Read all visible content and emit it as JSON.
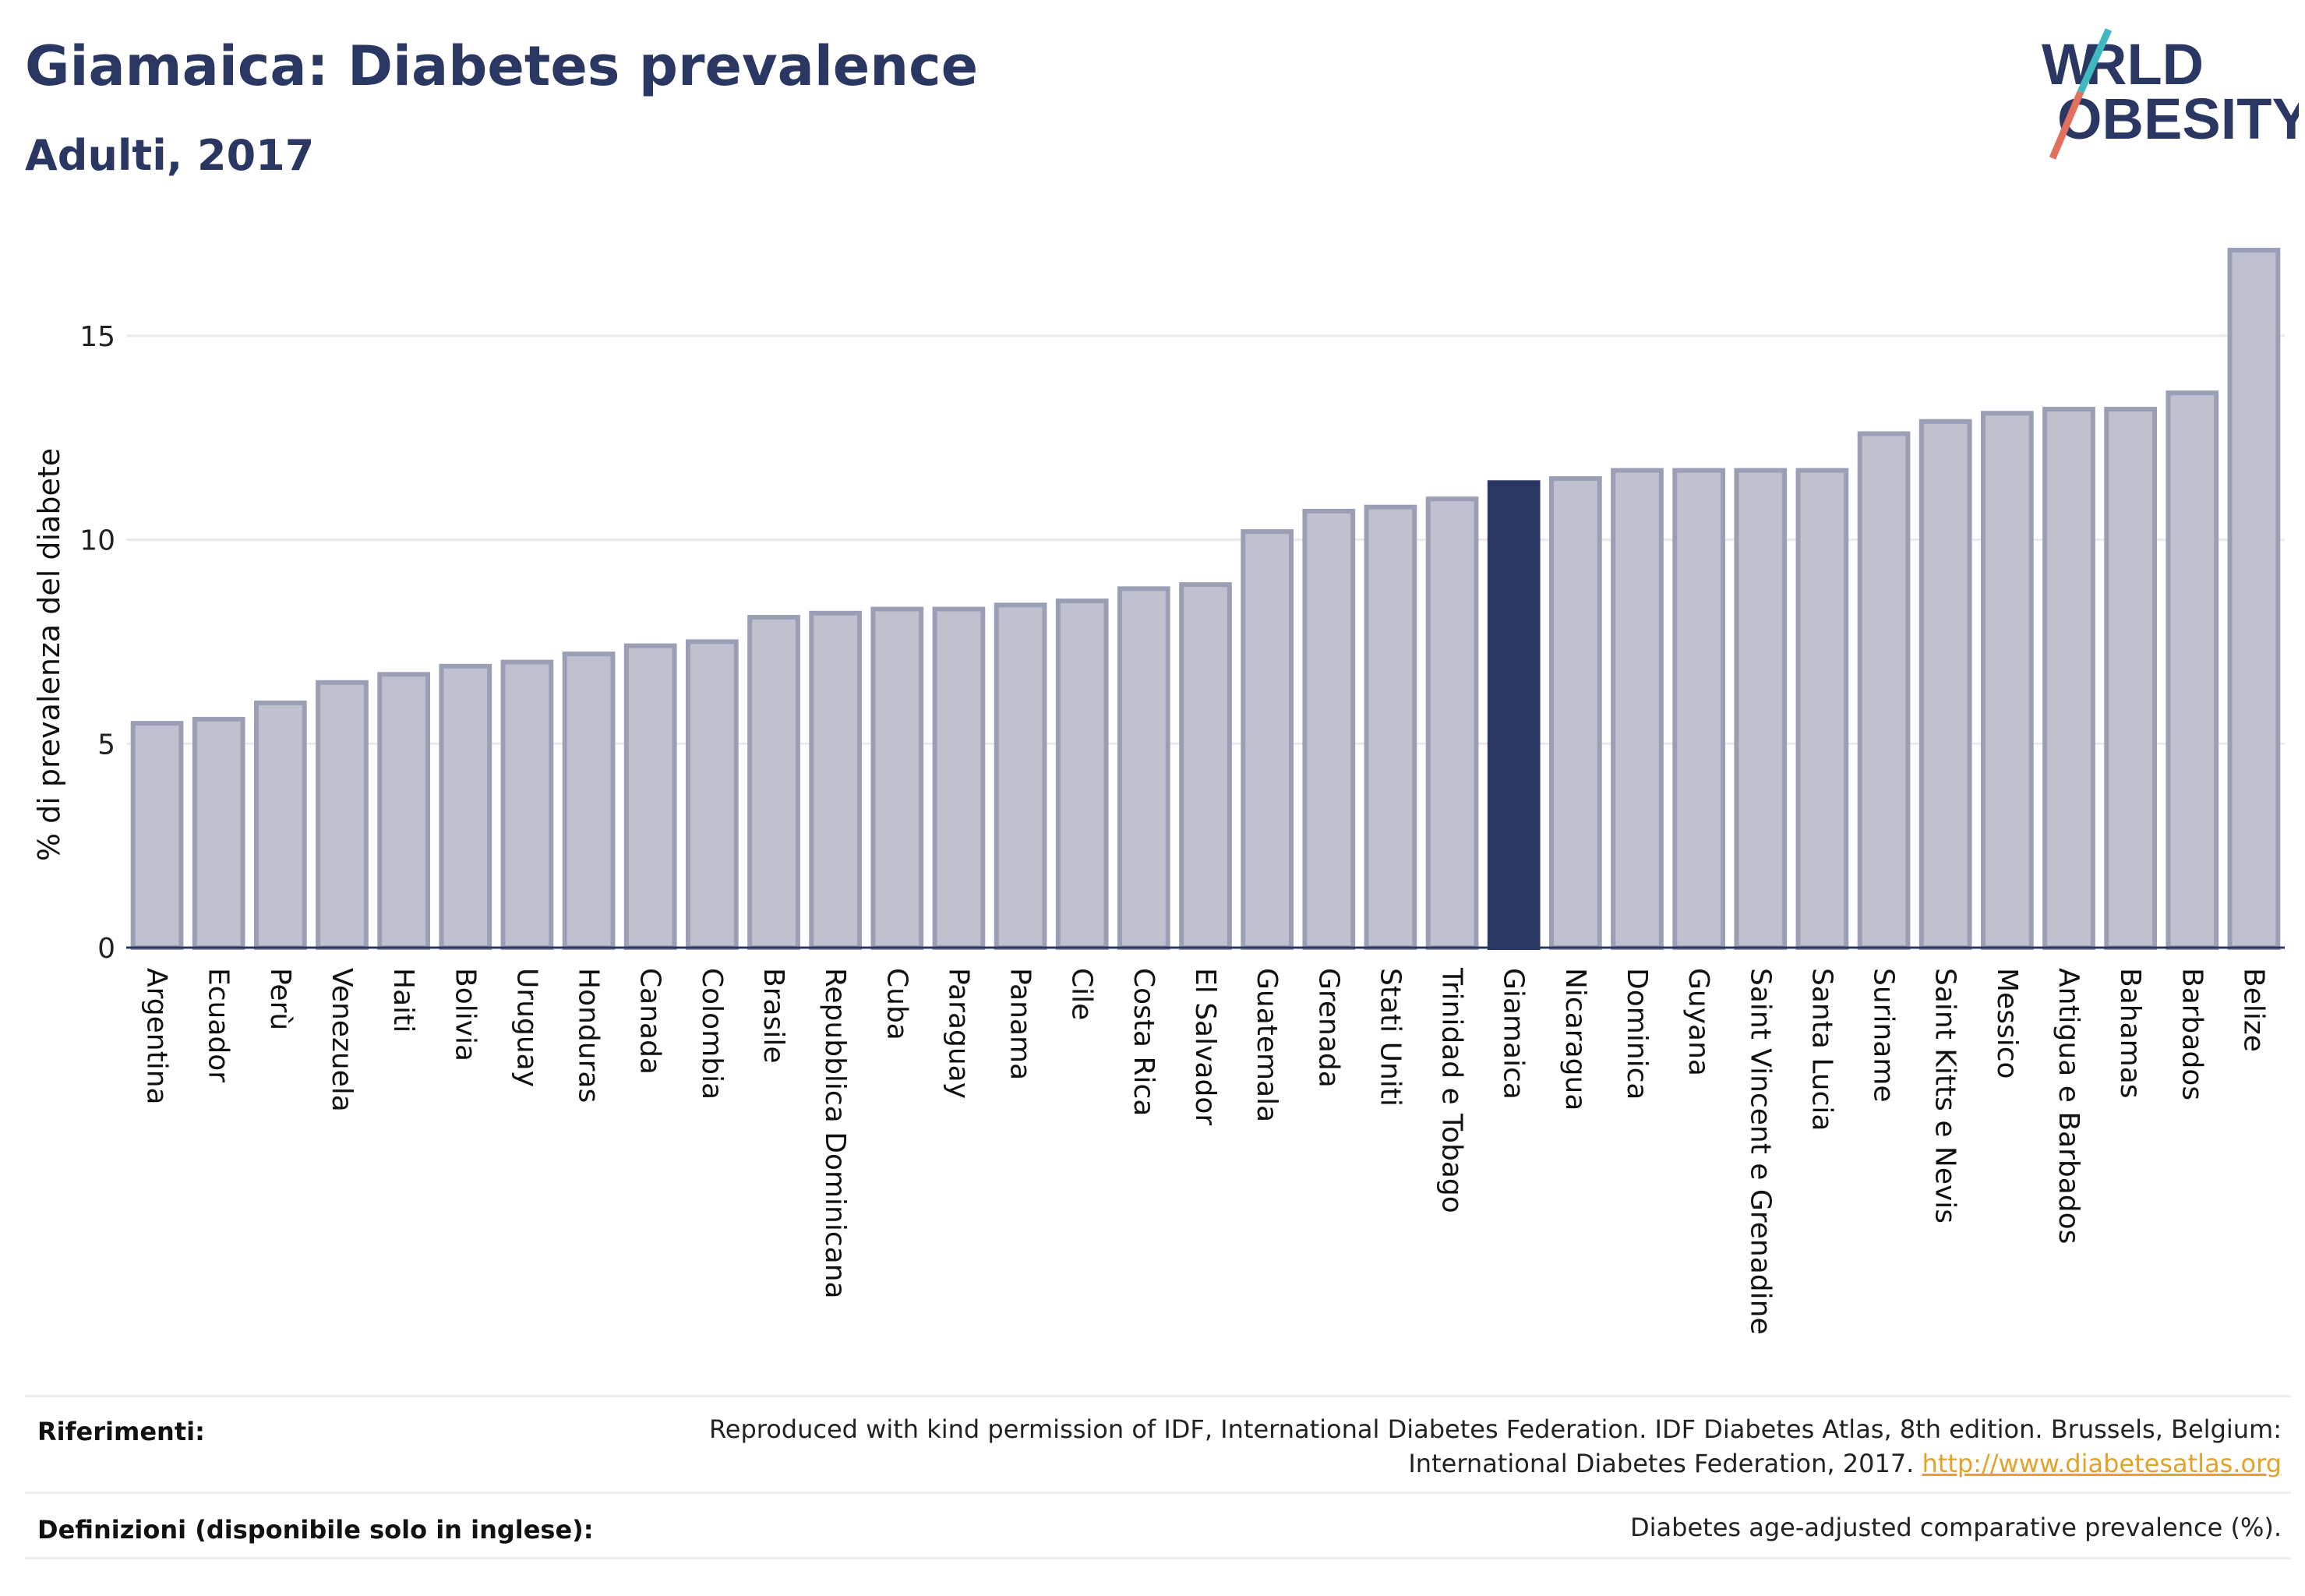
{
  "header": {
    "title": "Giamaica: Diabetes prevalence",
    "subtitle": "Adulti, 2017"
  },
  "logo": {
    "line1": "W  RLD",
    "line2": "  BESITY",
    "text": "WORLD OBESITY",
    "colors": {
      "navy": "#2b3763",
      "teal": "#3fb8c1",
      "coral": "#e2705f"
    }
  },
  "chart_data": {
    "type": "bar",
    "title": "",
    "xlabel": "",
    "ylabel": "% di prevalenza del diabete",
    "ylim": [
      0,
      17.5
    ],
    "yticks": [
      0,
      5,
      10,
      15
    ],
    "grid": true,
    "highlight": "Giamaica",
    "colors": {
      "bar": "#bfc1cf",
      "bar_border": "#9b9fb6",
      "highlight": "#2b3763",
      "axis": "#2b3763",
      "grid": "#e9e9ee"
    },
    "categories": [
      "Argentina",
      "Ecuador",
      "Perù",
      "Venezuela",
      "Haiti",
      "Bolivia",
      "Uruguay",
      "Honduras",
      "Canada",
      "Colombia",
      "Brasile",
      "Repubblica Dominicana",
      "Cuba",
      "Paraguay",
      "Panama",
      "Cile",
      "Costa Rica",
      "El Salvador",
      "Guatemala",
      "Grenada",
      "Stati Uniti",
      "Trinidad e Tobago",
      "Giamaica",
      "Nicaragua",
      "Dominica",
      "Guyana",
      "Saint Vincent e Grenadine",
      "Santa Lucia",
      "Suriname",
      "Saint Kitts e Nevis",
      "Messico",
      "Antigua e Barbados",
      "Bahamas",
      "Barbados",
      "Belize"
    ],
    "values": [
      5.5,
      5.6,
      6.0,
      6.5,
      6.7,
      6.9,
      7.0,
      7.2,
      7.4,
      7.5,
      8.1,
      8.2,
      8.3,
      8.3,
      8.4,
      8.5,
      8.8,
      8.9,
      10.2,
      10.7,
      10.8,
      11.0,
      11.4,
      11.5,
      11.7,
      11.7,
      11.7,
      11.7,
      12.6,
      12.9,
      13.1,
      13.2,
      13.2,
      13.6,
      17.1
    ]
  },
  "footer": {
    "references_label": "Riferimenti:",
    "references_line1": "Reproduced with kind permission of IDF, International Diabetes Federation. IDF Diabetes Atlas, 8th edition. Brussels, Belgium:",
    "references_line2": "International Diabetes Federation, 2017.",
    "references_link": "http://www.diabetesatlas.org",
    "definitions_label": "Definizioni (disponibile solo in inglese):",
    "definitions_text": "Diabetes age-adjusted comparative prevalence (%)."
  }
}
